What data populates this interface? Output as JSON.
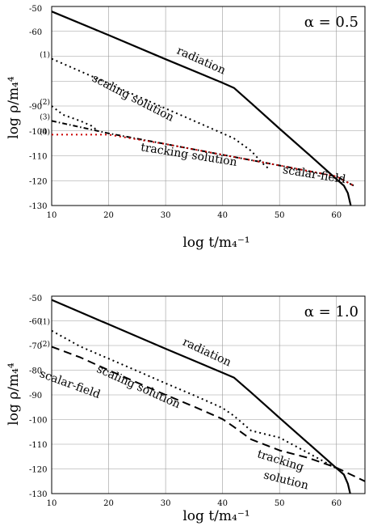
{
  "chart_data": [
    {
      "type": "line",
      "title": "",
      "panel_label": "α = 0.5",
      "xlabel": "log  t/m₄⁻¹",
      "ylabel": "log ρ/m₄⁴",
      "xlim": [
        10,
        65
      ],
      "ylim": [
        -130,
        -50
      ],
      "xticks": [
        10,
        20,
        30,
        40,
        50,
        60
      ],
      "yticks": [
        -50,
        -60,
        -70,
        -80,
        -90,
        -100,
        -110,
        -120,
        -130
      ],
      "ytick_labels": [
        "-50",
        "-60",
        "",
        "",
        "-90",
        "-100",
        "-110",
        "-120",
        "-130"
      ],
      "grid": true,
      "curve_labels": [
        {
          "text": "(1)",
          "x": 10,
          "y": -71
        },
        {
          "text": "(2)",
          "x": 10,
          "y": -90
        },
        {
          "text": "(3)",
          "x": 10,
          "y": -96
        },
        {
          "text": "(4)",
          "x": 10,
          "y": -102
        }
      ],
      "annotations": [
        {
          "text": "radiation",
          "x": 36,
          "y": -73,
          "rotate": 24
        },
        {
          "text": "scaling solution",
          "x": 24,
          "y": -88,
          "rotate": 27
        },
        {
          "text": "tracking solution",
          "x": 34,
          "y": -111,
          "rotate": 9
        },
        {
          "text": "scalar-field",
          "x": 56,
          "y": -119,
          "rotate": 9
        }
      ],
      "series": [
        {
          "style": "solid",
          "color": "#000000",
          "x": [
            10,
            20,
            30,
            40,
            42,
            45,
            50,
            55,
            60,
            61.3,
            62,
            62.5
          ],
          "y": [
            -52,
            -61.5,
            -71.2,
            -80.7,
            -82.7,
            -88.8,
            -99.1,
            -109.2,
            -119.4,
            -122,
            -125,
            -130
          ]
        },
        {
          "style": "dotted",
          "color": "#000000",
          "x": [
            10,
            15,
            20,
            25,
            30,
            35,
            40,
            42,
            45,
            47,
            48
          ],
          "y": [
            -71,
            -76,
            -81,
            -86,
            -91,
            -96,
            -101,
            -103,
            -108,
            -113,
            -115
          ]
        },
        {
          "style": "dotted",
          "color": "#000000",
          "x": [
            10,
            12,
            15,
            17,
            18
          ],
          "y": [
            -90,
            -93.5,
            -96,
            -98,
            -99.8
          ]
        },
        {
          "style": "dashdot",
          "color": "#000000",
          "x": [
            10,
            15,
            20,
            30,
            40,
            50,
            60,
            63
          ],
          "y": [
            -96,
            -98.5,
            -101,
            -105.3,
            -109.6,
            -113.9,
            -118.3,
            -122
          ]
        },
        {
          "style": "dotted",
          "color": "#cc0000",
          "x": [
            10,
            15,
            20,
            30,
            40,
            50,
            60,
            63
          ],
          "y": [
            -101.5,
            -101.5,
            -101.5,
            -105.3,
            -109.6,
            -113.9,
            -118.3,
            -122
          ]
        }
      ]
    },
    {
      "type": "line",
      "title": "",
      "panel_label": "α = 1.0",
      "xlabel": "log  t/m₄⁻¹",
      "ylabel": "log ρ/m₄⁴",
      "xlim": [
        10,
        65
      ],
      "ylim": [
        -130,
        -50
      ],
      "xticks": [
        10,
        20,
        30,
        40,
        50,
        60
      ],
      "yticks": [
        -50,
        -60,
        -70,
        -80,
        -90,
        -100,
        -110,
        -120,
        -130
      ],
      "ytick_labels": [
        "-50",
        "-60",
        "-70",
        "-80",
        "-90",
        "-100",
        "-110",
        "-120",
        "-130"
      ],
      "grid": true,
      "curve_labels": [
        {
          "text": "(1)",
          "x": 10,
          "y": -62
        },
        {
          "text": "(2)",
          "x": 10,
          "y": -71
        }
      ],
      "annotations": [
        {
          "text": "radiation",
          "x": 37,
          "y": -74,
          "rotate": 25
        },
        {
          "text": "scalar-field",
          "x": 13,
          "y": -87,
          "rotate": 20
        },
        {
          "text": "scaling solution",
          "x": 25,
          "y": -88,
          "rotate": 24
        },
        {
          "text": "tracking",
          "x": 50,
          "y": -118,
          "rotate": 17
        },
        {
          "text": "solution",
          "x": 51,
          "y": -126,
          "rotate": 14
        }
      ],
      "series": [
        {
          "style": "solid",
          "color": "#000000",
          "x": [
            10,
            20,
            30,
            40,
            42,
            45,
            50,
            55,
            60,
            61.3,
            62,
            62.4
          ],
          "y": [
            -51.5,
            -61.4,
            -71.3,
            -81,
            -83,
            -89,
            -99.3,
            -109.5,
            -119.7,
            -122.3,
            -126,
            -130
          ]
        },
        {
          "style": "dotted",
          "color": "#000000",
          "x": [
            10,
            15,
            20,
            25,
            30,
            35,
            40,
            42,
            45,
            50,
            55,
            60
          ],
          "y": [
            -64,
            -70.4,
            -75.3,
            -80.3,
            -85.3,
            -90.2,
            -95.3,
            -98.5,
            -104.5,
            -107.3,
            -113.5,
            -119.8
          ]
        },
        {
          "style": "dashed",
          "color": "#000000",
          "x": [
            10,
            15,
            20,
            25,
            30,
            35,
            40,
            42,
            45,
            50,
            55,
            60,
            65
          ],
          "y": [
            -70.5,
            -74.8,
            -80,
            -85,
            -90,
            -94.8,
            -99.8,
            -103,
            -108,
            -112.5,
            -115.5,
            -119.5,
            -125
          ]
        }
      ]
    }
  ]
}
